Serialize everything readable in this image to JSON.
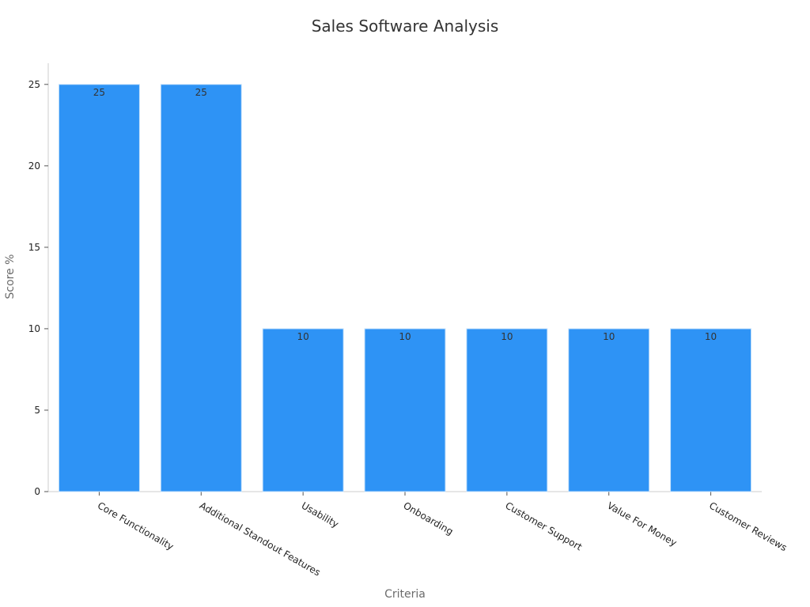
{
  "chart_data": {
    "type": "bar",
    "title": "Sales Software Analysis",
    "xlabel": "Criteria",
    "ylabel": "Score %",
    "categories": [
      "Core Functionality",
      "Additional Standout Features",
      "Usability",
      "Onboarding",
      "Customer Support",
      "Value For Money",
      "Customer Reviews"
    ],
    "values": [
      25,
      25,
      10,
      10,
      10,
      10,
      10
    ],
    "data_labels": [
      "25",
      "25",
      "10",
      "10",
      "10",
      "10",
      "10"
    ],
    "ylim": [
      0,
      26.3
    ],
    "yticks": [
      0,
      5,
      10,
      15,
      20,
      25
    ],
    "grid": false,
    "legend": "none",
    "colors": {
      "bar": "#2e93f5",
      "bar_edge": "#c9e3fb",
      "axis": "#cccccc",
      "title": "#333333",
      "tick_label": "#222222",
      "axis_label": "#6b6b6b",
      "data_label": "#333333"
    }
  }
}
